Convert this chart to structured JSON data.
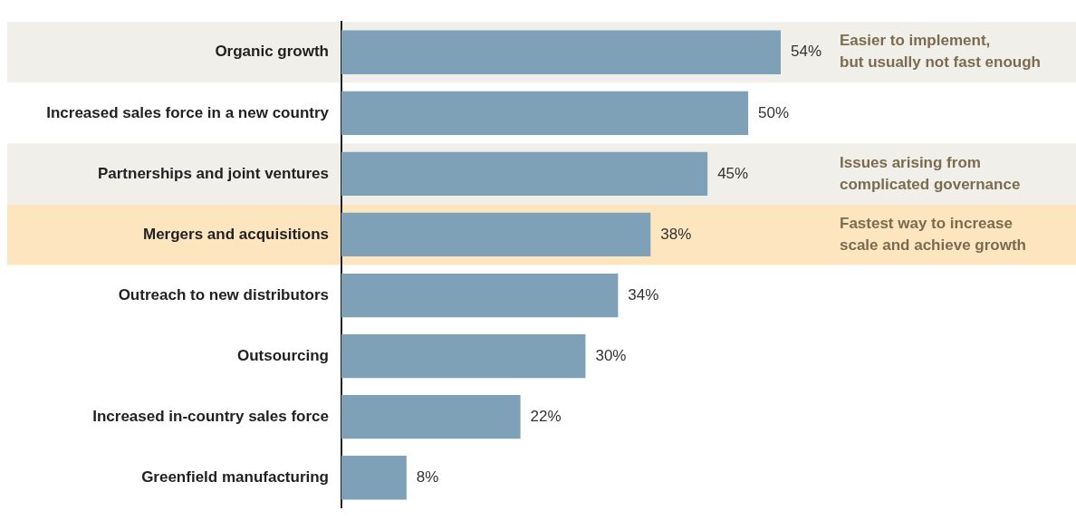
{
  "chart_data": {
    "type": "bar",
    "orientation": "horizontal",
    "categories": [
      "Organic growth",
      "Increased sales force in a new country",
      "Partnerships and joint ventures",
      "Mergers and acquisitions",
      "Outreach to new distributors",
      "Outsourcing",
      "Increased in-country sales force",
      "Greenfield manufacturing"
    ],
    "values": [
      54,
      50,
      45,
      38,
      34,
      30,
      22,
      8
    ],
    "value_labels": [
      "54%",
      "50%",
      "45%",
      "38%",
      "34%",
      "30%",
      "22%",
      "8%"
    ],
    "color": "#7fa1b8",
    "xlim": [
      0,
      54
    ],
    "tick_labels": "y",
    "bands": [
      {
        "axis": "y",
        "from": "Organic growth",
        "to": "Organic growth",
        "label": "Easier to implement,\nbut usually not fast enough",
        "color": "#f1efe9"
      },
      {
        "axis": "y",
        "from": "Partnerships and joint ventures",
        "to": "Partnerships and joint ventures",
        "label": "Issues arising from\ncomplicated governance",
        "color": "#f1efe9"
      },
      {
        "axis": "y",
        "from": "Mergers and acquisitions",
        "to": "Mergers and acquisitions",
        "label": "Fastest way to increase\nscale and achieve growth",
        "color": "#fde5c0"
      }
    ]
  }
}
